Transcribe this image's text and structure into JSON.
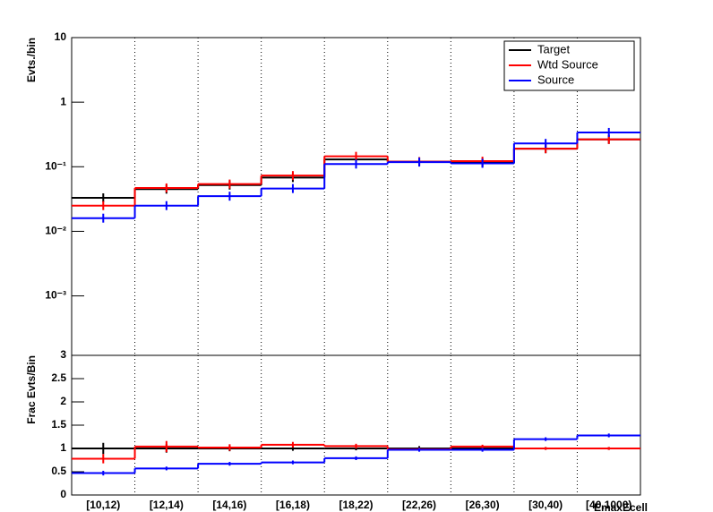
{
  "chart_data": [
    {
      "type": "step",
      "y_label": "Evts./bin",
      "log_y": true,
      "xgrid": true,
      "legend": "top-right",
      "ylim": [
        0.00012,
        10
      ],
      "yticks": [
        {
          "value": 0.001,
          "label": "10⁻³"
        },
        {
          "value": 0.01,
          "label": "10⁻²"
        },
        {
          "value": 0.1,
          "label": "10⁻¹"
        },
        1,
        10
      ],
      "series": [
        {
          "name": "Target",
          "color": "#000000",
          "values": [
            0.033,
            0.045,
            0.052,
            0.068,
            0.13,
            0.12,
            0.115,
            0.19,
            0.265
          ]
        },
        {
          "name": "Wtd Source",
          "color": "#ff0000",
          "values": [
            0.025,
            0.047,
            0.054,
            0.073,
            0.145,
            0.12,
            0.122,
            0.19,
            0.265
          ]
        },
        {
          "name": "Source",
          "color": "#0000ff",
          "values": [
            0.016,
            0.025,
            0.035,
            0.046,
            0.11,
            0.118,
            0.113,
            0.23,
            0.34
          ]
        }
      ]
    },
    {
      "type": "step",
      "y_label": "Frac Evts/Bin",
      "x_label": "EmaxEcell",
      "xgrid": true,
      "categories": [
        "[10,12)",
        "[12,14)",
        "[14,16)",
        "[16,18)",
        "[18,22)",
        "[22,26)",
        "[26,30)",
        "[30,40)",
        "[40,1000)"
      ],
      "ylim": [
        0,
        3
      ],
      "yticks": [
        0,
        0.5,
        1,
        1.5,
        2,
        2.5,
        3
      ],
      "series": [
        {
          "color": "#000000",
          "values": [
            1,
            1,
            1,
            1,
            1,
            1,
            1,
            1,
            1
          ],
          "errors": [
            0.12,
            0.09,
            0.06,
            0.05,
            0.04,
            0.05,
            0.04,
            0.03,
            0.03
          ]
        },
        {
          "color": "#ff0000",
          "values": [
            0.78,
            1.04,
            1.02,
            1.08,
            1.05,
            0.98,
            1.04,
            1,
            1
          ],
          "errors": [
            0.1,
            0.12,
            0.07,
            0.06,
            0.05,
            0.04,
            0.04,
            0.03,
            0.03
          ]
        },
        {
          "color": "#0000ff",
          "values": [
            0.47,
            0.57,
            0.67,
            0.7,
            0.79,
            0.97,
            0.97,
            1.2,
            1.28
          ],
          "errors": [
            0.05,
            0.04,
            0.04,
            0.04,
            0.04,
            0.04,
            0.04,
            0.04,
            0.04
          ]
        }
      ]
    }
  ]
}
